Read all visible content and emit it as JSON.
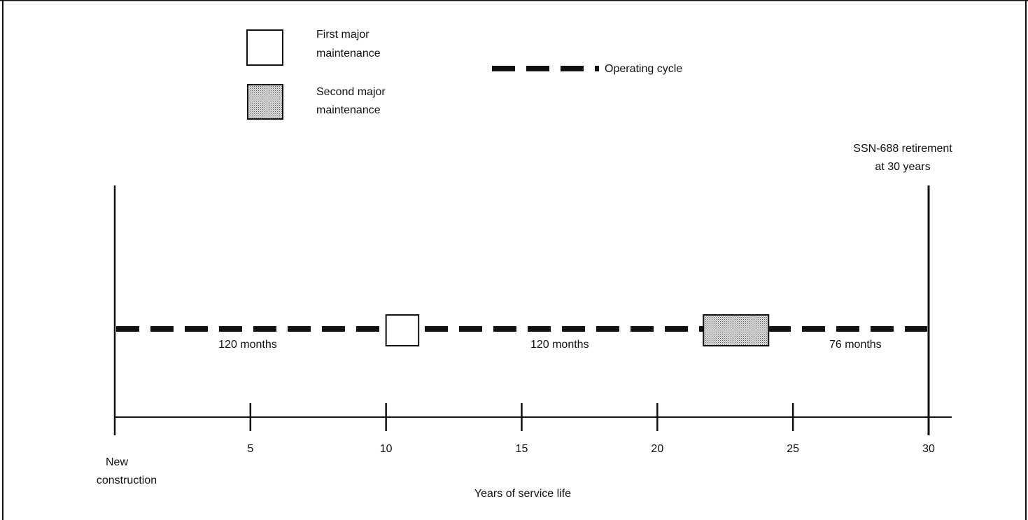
{
  "legend": {
    "first_major_label": [
      "First major",
      "maintenance"
    ],
    "second_major_label": [
      "Second major",
      "maintenance"
    ],
    "operating_cycle_label": "Operating cycle"
  },
  "retirement_label": [
    "SSN-688 retirement",
    "at 30 years"
  ],
  "axis": {
    "title": "Years of service life",
    "start_label": [
      "New",
      "construction"
    ],
    "range": [
      0,
      30
    ],
    "ticks": [
      {
        "value": 5,
        "label": "5"
      },
      {
        "value": 10,
        "label": "10"
      },
      {
        "value": 15,
        "label": "15"
      },
      {
        "value": 20,
        "label": "20"
      },
      {
        "value": 25,
        "label": "25"
      },
      {
        "value": 30,
        "label": "30"
      }
    ]
  },
  "maintenance_periods": [
    {
      "name": "first-major-maintenance",
      "start_year": 10.0,
      "end_year": 11.2,
      "shaded": false
    },
    {
      "name": "second-major-maintenance",
      "start_year": 21.7,
      "end_year": 24.1,
      "shaded": true
    }
  ],
  "cycles": [
    {
      "label": "120 months",
      "label_year": 4.9
    },
    {
      "label": "120 months",
      "label_year": 16.4
    },
    {
      "label": "76 months",
      "label_year": 27.3
    }
  ],
  "colors": {
    "line": "#111111",
    "shading": "#c4c4c4",
    "background": "#ffffff"
  }
}
